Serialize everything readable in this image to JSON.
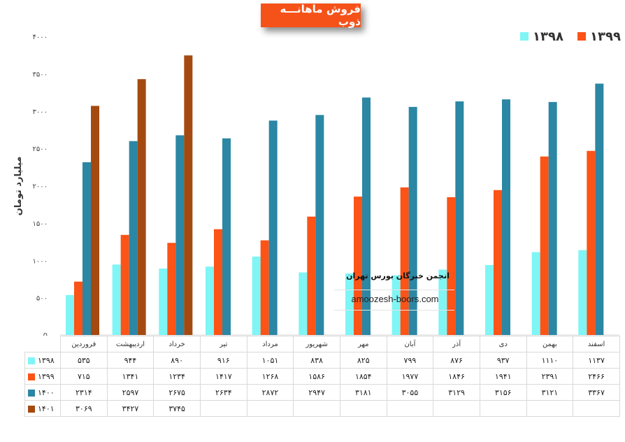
{
  "chart_data": {
    "type": "bar",
    "title": "فروش ماهانـــه ذوب",
    "ylabel": "میلیارد تومان",
    "xlabel": "",
    "ylim": [
      0,
      4000
    ],
    "yticks": [
      0,
      500,
      1000,
      1500,
      2000,
      2500,
      3000,
      3500,
      4000
    ],
    "ytick_labels": [
      "0",
      "۵۰۰",
      "۱۰۰۰",
      "۱۵۰۰",
      "۲۰۰۰",
      "۲۵۰۰",
      "۳۰۰۰",
      "۳۵۰۰",
      "۴۰۰۰"
    ],
    "categories": [
      "فروردین",
      "اردیبهشت",
      "خرداد",
      "تیر",
      "مرداد",
      "شهریور",
      "مهر",
      "آبان",
      "آذر",
      "دی",
      "بهمن",
      "اسفند"
    ],
    "series": [
      {
        "name": "۱۳۹۸",
        "color": "#7ff5f5",
        "values": [
          535,
          944,
          890,
          916,
          1051,
          838,
          825,
          799,
          876,
          937,
          1110,
          1137
        ],
        "labels": [
          "۵۳۵",
          "۹۴۴",
          "۸۹۰",
          "۹۱۶",
          "۱۰۵۱",
          "۸۳۸",
          "۸۲۵",
          "۷۹۹",
          "۸۷۶",
          "۹۳۷",
          "۱۱۱۰",
          "۱۱۳۷"
        ]
      },
      {
        "name": "۱۳۹۹",
        "color": "#fc5316",
        "values": [
          715,
          1341,
          1234,
          1417,
          1268,
          1586,
          1854,
          1977,
          1846,
          1941,
          2391,
          2466
        ],
        "labels": [
          "۷۱۵",
          "۱۳۴۱",
          "۱۲۳۴",
          "۱۴۱۷",
          "۱۲۶۸",
          "۱۵۸۶",
          "۱۸۵۴",
          "۱۹۷۷",
          "۱۸۴۶",
          "۱۹۴۱",
          "۲۳۹۱",
          "۲۴۶۶"
        ]
      },
      {
        "name": "۱۴۰۰",
        "color": "#2b87a4",
        "values": [
          2314,
          2597,
          2675,
          2634,
          2872,
          2947,
          3181,
          3055,
          3129,
          3156,
          3121,
          3367
        ],
        "labels": [
          "۲۳۱۴",
          "۲۵۹۷",
          "۲۶۷۵",
          "۲۶۳۴",
          "۲۸۷۲",
          "۲۹۴۷",
          "۳۱۸۱",
          "۳۰۵۵",
          "۳۱۲۹",
          "۳۱۵۶",
          "۳۱۲۱",
          "۳۳۶۷"
        ]
      },
      {
        "name": "۱۴۰۱",
        "color": "#a44a11",
        "values": [
          3069,
          3427,
          3745,
          null,
          null,
          null,
          null,
          null,
          null,
          null,
          null,
          null
        ],
        "labels": [
          "۳۰۶۹",
          "۳۴۲۷",
          "۳۷۴۵",
          "",
          "",
          "",
          "",
          "",
          "",
          "",
          "",
          ""
        ]
      }
    ],
    "legend": [
      {
        "name": "۱۳۹۹",
        "color": "#fc5316"
      },
      {
        "name": "۱۳۹۸",
        "color": "#7ff5f5"
      }
    ]
  },
  "watermark": {
    "title": "انجمن خبرگان بورس تهران",
    "url": "amoozesh-boors.com"
  }
}
